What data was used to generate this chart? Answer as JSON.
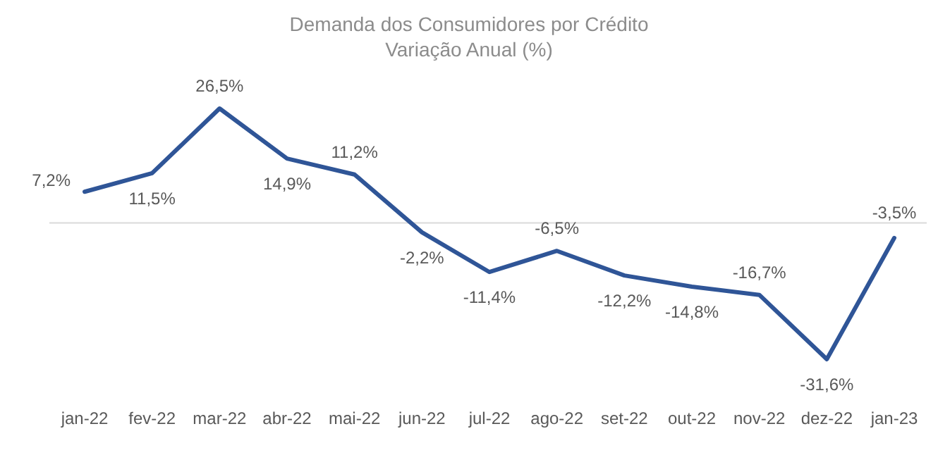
{
  "chart_data": {
    "type": "line",
    "title": "Demanda dos Consumidores por Crédito",
    "subtitle": "Variação Anual (%)",
    "categories": [
      "jan-22",
      "fev-22",
      "mar-22",
      "abr-22",
      "mai-22",
      "jun-22",
      "jul-22",
      "ago-22",
      "set-22",
      "out-22",
      "nov-22",
      "dez-22",
      "jan-23"
    ],
    "series": [
      {
        "color": "#2f5597",
        "values": [
          7.2,
          11.5,
          26.5,
          14.9,
          11.2,
          -2.2,
          -11.4,
          -6.5,
          -12.2,
          -14.8,
          -16.7,
          -31.6,
          -3.5
        ],
        "value_labels": [
          "7,2%",
          "11,5%",
          "26,5%",
          "14,9%",
          "11,2%",
          "-2,2%",
          "-11,4%",
          "-6,5%",
          "-12,2%",
          "-14,8%",
          "-16,7%",
          "-31,6%",
          "-3,5%"
        ]
      }
    ],
    "marker": "none",
    "line_style": "solid"
  }
}
